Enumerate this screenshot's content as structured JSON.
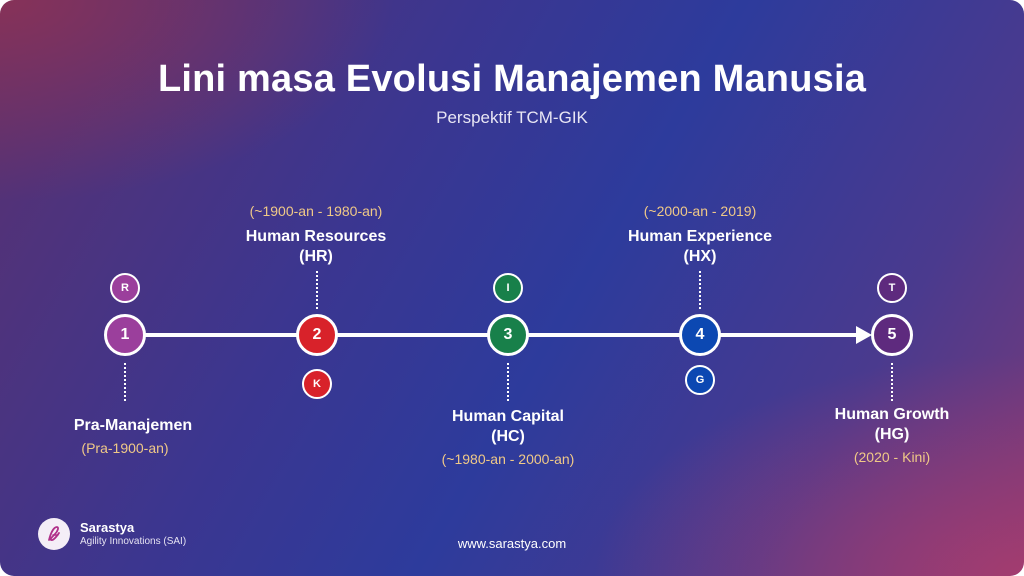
{
  "header": {
    "title": "Lini masa Evolusi Manajemen Manusia",
    "subtitle": "Perspektif TCM-GIK"
  },
  "stages": [
    {
      "number": "1",
      "name": "Pra-Manajemen",
      "abbr": "",
      "period": "(Pra-1900-an)",
      "color": "#9b3f9c",
      "letter": "R",
      "letter_color": "#9b3f9c"
    },
    {
      "number": "2",
      "name": "Human Resources",
      "abbr": "(HR)",
      "period": "(~1900-an - 1980-an)",
      "color": "#d8222a",
      "letter": "K",
      "letter_color": "#d8222a"
    },
    {
      "number": "3",
      "name": "Human Capital",
      "abbr": "(HC)",
      "period": "(~1980-an - 2000-an)",
      "color": "#18804a",
      "letter": "I",
      "letter_color": "#18804a"
    },
    {
      "number": "4",
      "name": "Human Experience",
      "abbr": "(HX)",
      "period": "(~2000-an - 2019)",
      "color": "#0c48b2",
      "letter": "G",
      "letter_color": "#0c48b2"
    },
    {
      "number": "5",
      "name": "Human Growth",
      "abbr": "(HG)",
      "period": "(2020 - Kini)",
      "color": "#5e2a7e",
      "letter": "T",
      "letter_color": "#5e2a7e"
    }
  ],
  "footer": {
    "brand_name": "Sarastya",
    "brand_subtitle": "Agility Innovations (SAI)",
    "website": "www.sarastya.com"
  }
}
